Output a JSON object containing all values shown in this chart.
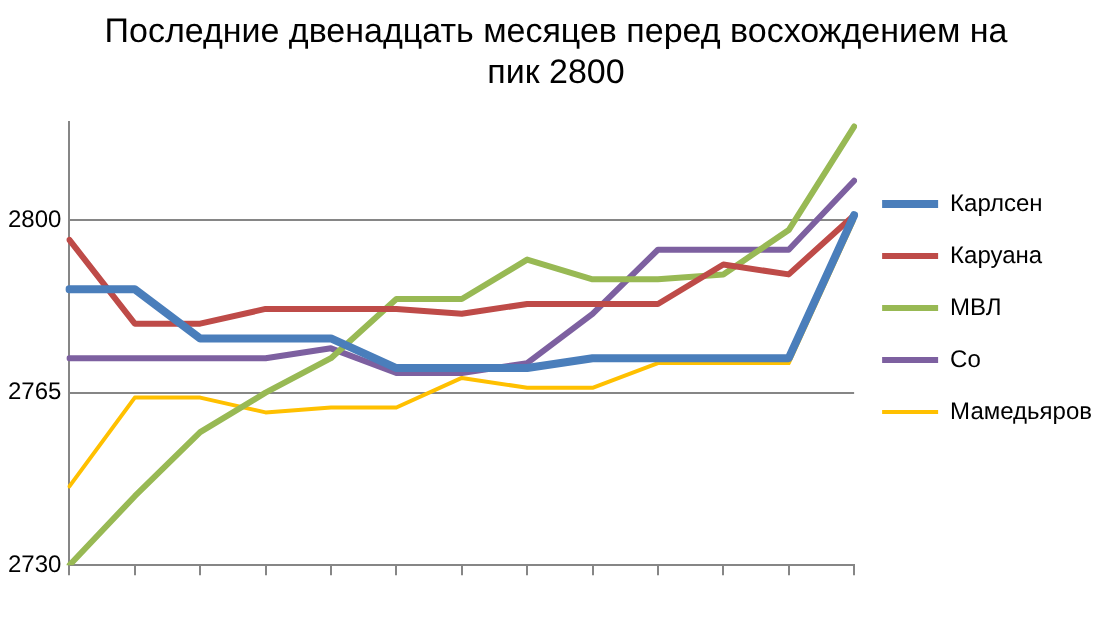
{
  "chart_data": {
    "type": "line",
    "title": "Последние двенадцать месяцев перед восхождением на пик 2800",
    "categories": [
      null,
      null,
      null,
      null,
      null,
      null,
      null,
      null,
      null,
      null,
      null,
      null,
      null
    ],
    "series": [
      {
        "name": "Карлсен",
        "color": "#4a7ebb",
        "values": [
          2786,
          2786,
          2776,
          2776,
          2776,
          2770,
          2770,
          2770,
          2772,
          2772,
          2772,
          2772,
          2801
        ]
      },
      {
        "name": "Каруана",
        "color": "#be4b48",
        "values": [
          2796,
          2779,
          2779,
          2782,
          2782,
          2782,
          2781,
          2783,
          2783,
          2783,
          2791,
          2789,
          2801
        ]
      },
      {
        "name": "МВЛ",
        "color": "#98b954",
        "values": [
          2730,
          2744,
          2757,
          2765,
          2772,
          2784,
          2784,
          2792,
          2788,
          2788,
          2789,
          2798,
          2819
        ]
      },
      {
        "name": "Со",
        "color": "#7d60a0",
        "values": [
          2772,
          2772,
          2772,
          2772,
          2774,
          2769,
          2769,
          2771,
          2781,
          2794,
          2794,
          2794,
          2808
        ]
      },
      {
        "name": "Мамедьяров",
        "color": "#ffc000",
        "values": [
          2746,
          2764,
          2764,
          2761,
          2762,
          2762,
          2768,
          2766,
          2766,
          2771,
          2771,
          2771,
          2800
        ]
      }
    ],
    "ylim": [
      2730,
      2820
    ],
    "yticks": [
      2730,
      2765,
      2800
    ],
    "grid": "y",
    "legend": "right",
    "marker": "none",
    "line_style": "solid"
  }
}
